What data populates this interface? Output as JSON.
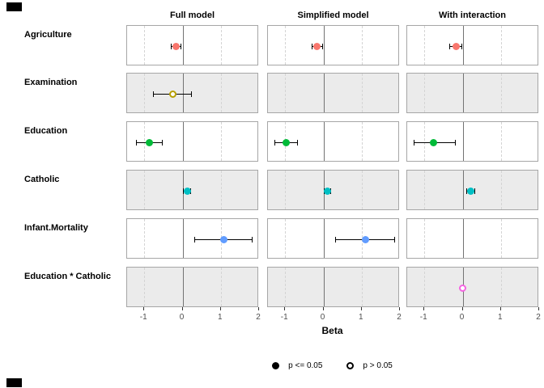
{
  "chart_data": {
    "type": "forest",
    "title": "",
    "xlabel": "Beta",
    "models": [
      "Full model",
      "Simplified model",
      "With interaction"
    ],
    "x_ticks": [
      -1,
      0,
      1,
      2
    ],
    "x_range": [
      -1.45,
      2.0
    ],
    "gridlines": {
      "dashed_at": [
        -1,
        1
      ],
      "zero_line_at": 0
    },
    "legend": [
      {
        "label": "p <= 0.05",
        "marker": "filled"
      },
      {
        "label": "p > 0.05",
        "marker": "open"
      }
    ],
    "rows": [
      {
        "term": "Agriculture",
        "color": "#F8766D",
        "cells": [
          {
            "beta": -0.17,
            "ci": [
              -0.31,
              -0.04
            ],
            "significant": true
          },
          {
            "beta": -0.16,
            "ci": [
              -0.3,
              -0.02
            ],
            "significant": true
          },
          {
            "beta": -0.18,
            "ci": [
              -0.34,
              -0.02
            ],
            "significant": true
          }
        ]
      },
      {
        "term": "Examination",
        "color": "#B79F00",
        "cells": [
          {
            "beta": -0.26,
            "ci": [
              -0.77,
              0.25
            ],
            "significant": false
          },
          null,
          null
        ]
      },
      {
        "term": "Education",
        "color": "#00BA38",
        "cells": [
          {
            "beta": -0.87,
            "ci": [
              -1.21,
              -0.51
            ],
            "significant": true
          },
          {
            "beta": -0.98,
            "ci": [
              -1.29,
              -0.67
            ],
            "significant": true
          },
          {
            "beta": -0.76,
            "ci": [
              -1.29,
              -0.19
            ],
            "significant": true
          }
        ]
      },
      {
        "term": "Catholic",
        "color": "#00BFC4",
        "cells": [
          {
            "beta": 0.12,
            "ci": [
              0.01,
              0.23
            ],
            "significant": true
          },
          {
            "beta": 0.11,
            "ci": [
              0.02,
              0.21
            ],
            "significant": true
          },
          {
            "beta": 0.21,
            "ci": [
              0.1,
              0.33
            ],
            "significant": true
          }
        ]
      },
      {
        "term": "Infant.Mortality",
        "color": "#619CFF",
        "cells": [
          {
            "beta": 1.08,
            "ci": [
              0.31,
              1.84
            ],
            "significant": true
          },
          {
            "beta": 1.09,
            "ci": [
              0.3,
              1.87
            ],
            "significant": true
          },
          null
        ]
      },
      {
        "term": "Education * Catholic",
        "color": "#F564E2",
        "cells": [
          null,
          null,
          {
            "beta": 0.01,
            "ci": [
              -0.03,
              0.05
            ],
            "significant": false
          }
        ]
      }
    ],
    "style_colors": {
      "panel_border": "#a6a6a6",
      "shaded_row_bg": "#ebebeb",
      "grid_dashed": "#d4d4d4",
      "zero_line": "#737373",
      "tick_text": "#4d4d4d"
    }
  }
}
